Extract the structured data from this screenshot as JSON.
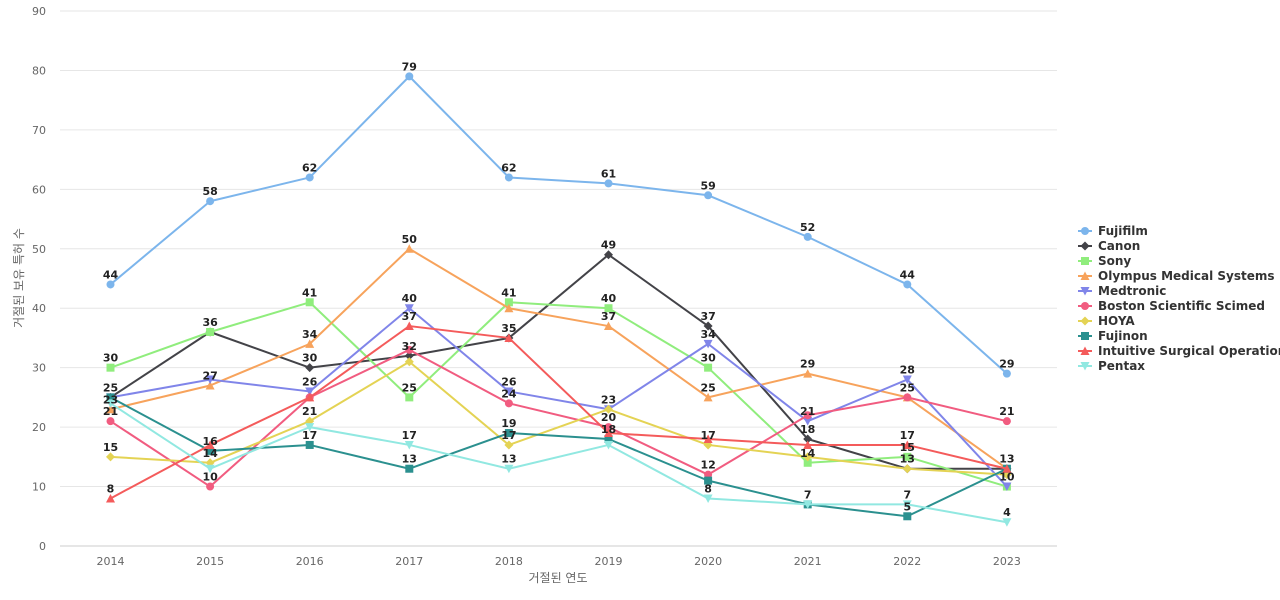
{
  "chart_data": {
    "type": "line",
    "title": "",
    "xlabel": "거절된 연도",
    "ylabel": "거절된 보유 특허 수",
    "x": [
      "2014",
      "2015",
      "2016",
      "2017",
      "2018",
      "2019",
      "2020",
      "2021",
      "2022",
      "2023"
    ],
    "ylim": [
      0,
      90
    ],
    "yticks": [
      0,
      10,
      20,
      30,
      40,
      50,
      60,
      70,
      80,
      90
    ],
    "grid": true,
    "legend_position": "right",
    "series": [
      {
        "name": "Fujifilm",
        "color": "#7cb5ec",
        "marker": "circle",
        "values": [
          44,
          58,
          62,
          79,
          62,
          61,
          59,
          52,
          44,
          29
        ]
      },
      {
        "name": "Canon",
        "color": "#434348",
        "marker": "diamond",
        "values": [
          25,
          36,
          30,
          32,
          35,
          49,
          37,
          18,
          13,
          13
        ]
      },
      {
        "name": "Sony",
        "color": "#90ed7d",
        "marker": "square",
        "values": [
          30,
          36,
          41,
          25,
          41,
          40,
          30,
          14,
          15,
          10
        ]
      },
      {
        "name": "Olympus Medical Systems",
        "color": "#f7a35c",
        "marker": "triangle",
        "values": [
          23,
          27,
          34,
          50,
          40,
          37,
          25,
          29,
          25,
          13
        ]
      },
      {
        "name": "Medtronic",
        "color": "#8085e9",
        "marker": "triangle-down",
        "values": [
          25,
          28,
          26,
          40,
          26,
          23,
          34,
          21,
          28,
          10
        ]
      },
      {
        "name": "Boston Scientific Scimed",
        "color": "#f15c80",
        "marker": "circle",
        "values": [
          21,
          10,
          25,
          33,
          24,
          20,
          12,
          22,
          25,
          21
        ]
      },
      {
        "name": "HOYA",
        "color": "#e4d354",
        "marker": "diamond",
        "values": [
          15,
          14,
          21,
          31,
          17,
          23,
          17,
          15,
          13,
          12
        ]
      },
      {
        "name": "Fujinon",
        "color": "#2b908f",
        "marker": "square",
        "values": [
          25,
          16,
          17,
          13,
          19,
          18,
          11,
          7,
          5,
          13
        ]
      },
      {
        "name": "Intuitive Surgical Operations",
        "color": "#f45b5b",
        "marker": "triangle",
        "values": [
          8,
          17,
          25,
          37,
          35,
          19,
          18,
          17,
          17,
          13
        ]
      },
      {
        "name": "Pentax",
        "color": "#91e8e1",
        "marker": "triangle-down",
        "values": [
          24,
          13,
          20,
          17,
          13,
          17,
          8,
          7,
          7,
          4
        ]
      }
    ],
    "data_labels": [
      {
        "x": "2014",
        "value": 44
      },
      {
        "x": "2014",
        "value": 30
      },
      {
        "x": "2014",
        "value": 25
      },
      {
        "x": "2014",
        "value": 23
      },
      {
        "x": "2014",
        "value": 21
      },
      {
        "x": "2014",
        "value": 15
      },
      {
        "x": "2014",
        "value": 8
      },
      {
        "x": "2015",
        "value": 58
      },
      {
        "x": "2015",
        "value": 36
      },
      {
        "x": "2015",
        "value": 27
      },
      {
        "x": "2015",
        "value": 16
      },
      {
        "x": "2015",
        "value": 14
      },
      {
        "x": "2015",
        "value": 10
      },
      {
        "x": "2016",
        "value": 62
      },
      {
        "x": "2016",
        "value": 41
      },
      {
        "x": "2016",
        "value": 34
      },
      {
        "x": "2016",
        "value": 30
      },
      {
        "x": "2016",
        "value": 26
      },
      {
        "x": "2016",
        "value": 21
      },
      {
        "x": "2016",
        "value": 17
      },
      {
        "x": "2017",
        "value": 79
      },
      {
        "x": "2017",
        "value": 50
      },
      {
        "x": "2017",
        "value": 40
      },
      {
        "x": "2017",
        "value": 37
      },
      {
        "x": "2017",
        "value": 32
      },
      {
        "x": "2017",
        "value": 25
      },
      {
        "x": "2017",
        "value": 17
      },
      {
        "x": "2017",
        "value": 13
      },
      {
        "x": "2018",
        "value": 62
      },
      {
        "x": "2018",
        "value": 41
      },
      {
        "x": "2018",
        "value": 35
      },
      {
        "x": "2018",
        "value": 26
      },
      {
        "x": "2018",
        "value": 24
      },
      {
        "x": "2018",
        "value": 19
      },
      {
        "x": "2018",
        "value": 17
      },
      {
        "x": "2018",
        "value": 13
      },
      {
        "x": "2019",
        "value": 61
      },
      {
        "x": "2019",
        "value": 49
      },
      {
        "x": "2019",
        "value": 40
      },
      {
        "x": "2019",
        "value": 37
      },
      {
        "x": "2019",
        "value": 23
      },
      {
        "x": "2019",
        "value": 20
      },
      {
        "x": "2019",
        "value": 18
      },
      {
        "x": "2020",
        "value": 59
      },
      {
        "x": "2020",
        "value": 37
      },
      {
        "x": "2020",
        "value": 34
      },
      {
        "x": "2020",
        "value": 30
      },
      {
        "x": "2020",
        "value": 25
      },
      {
        "x": "2020",
        "value": 17
      },
      {
        "x": "2020",
        "value": 12
      },
      {
        "x": "2020",
        "value": 8
      },
      {
        "x": "2021",
        "value": 52
      },
      {
        "x": "2021",
        "value": 29
      },
      {
        "x": "2021",
        "value": 21
      },
      {
        "x": "2021",
        "value": 18
      },
      {
        "x": "2021",
        "value": 14
      },
      {
        "x": "2021",
        "value": 7
      },
      {
        "x": "2022",
        "value": 44
      },
      {
        "x": "2022",
        "value": 28
      },
      {
        "x": "2022",
        "value": 25
      },
      {
        "x": "2022",
        "value": 17
      },
      {
        "x": "2022",
        "value": 15
      },
      {
        "x": "2022",
        "value": 13
      },
      {
        "x": "2022",
        "value": 7
      },
      {
        "x": "2022",
        "value": 5
      },
      {
        "x": "2023",
        "value": 29
      },
      {
        "x": "2023",
        "value": 21
      },
      {
        "x": "2023",
        "value": 13
      },
      {
        "x": "2023",
        "value": 10
      },
      {
        "x": "2023",
        "value": 4
      }
    ]
  }
}
